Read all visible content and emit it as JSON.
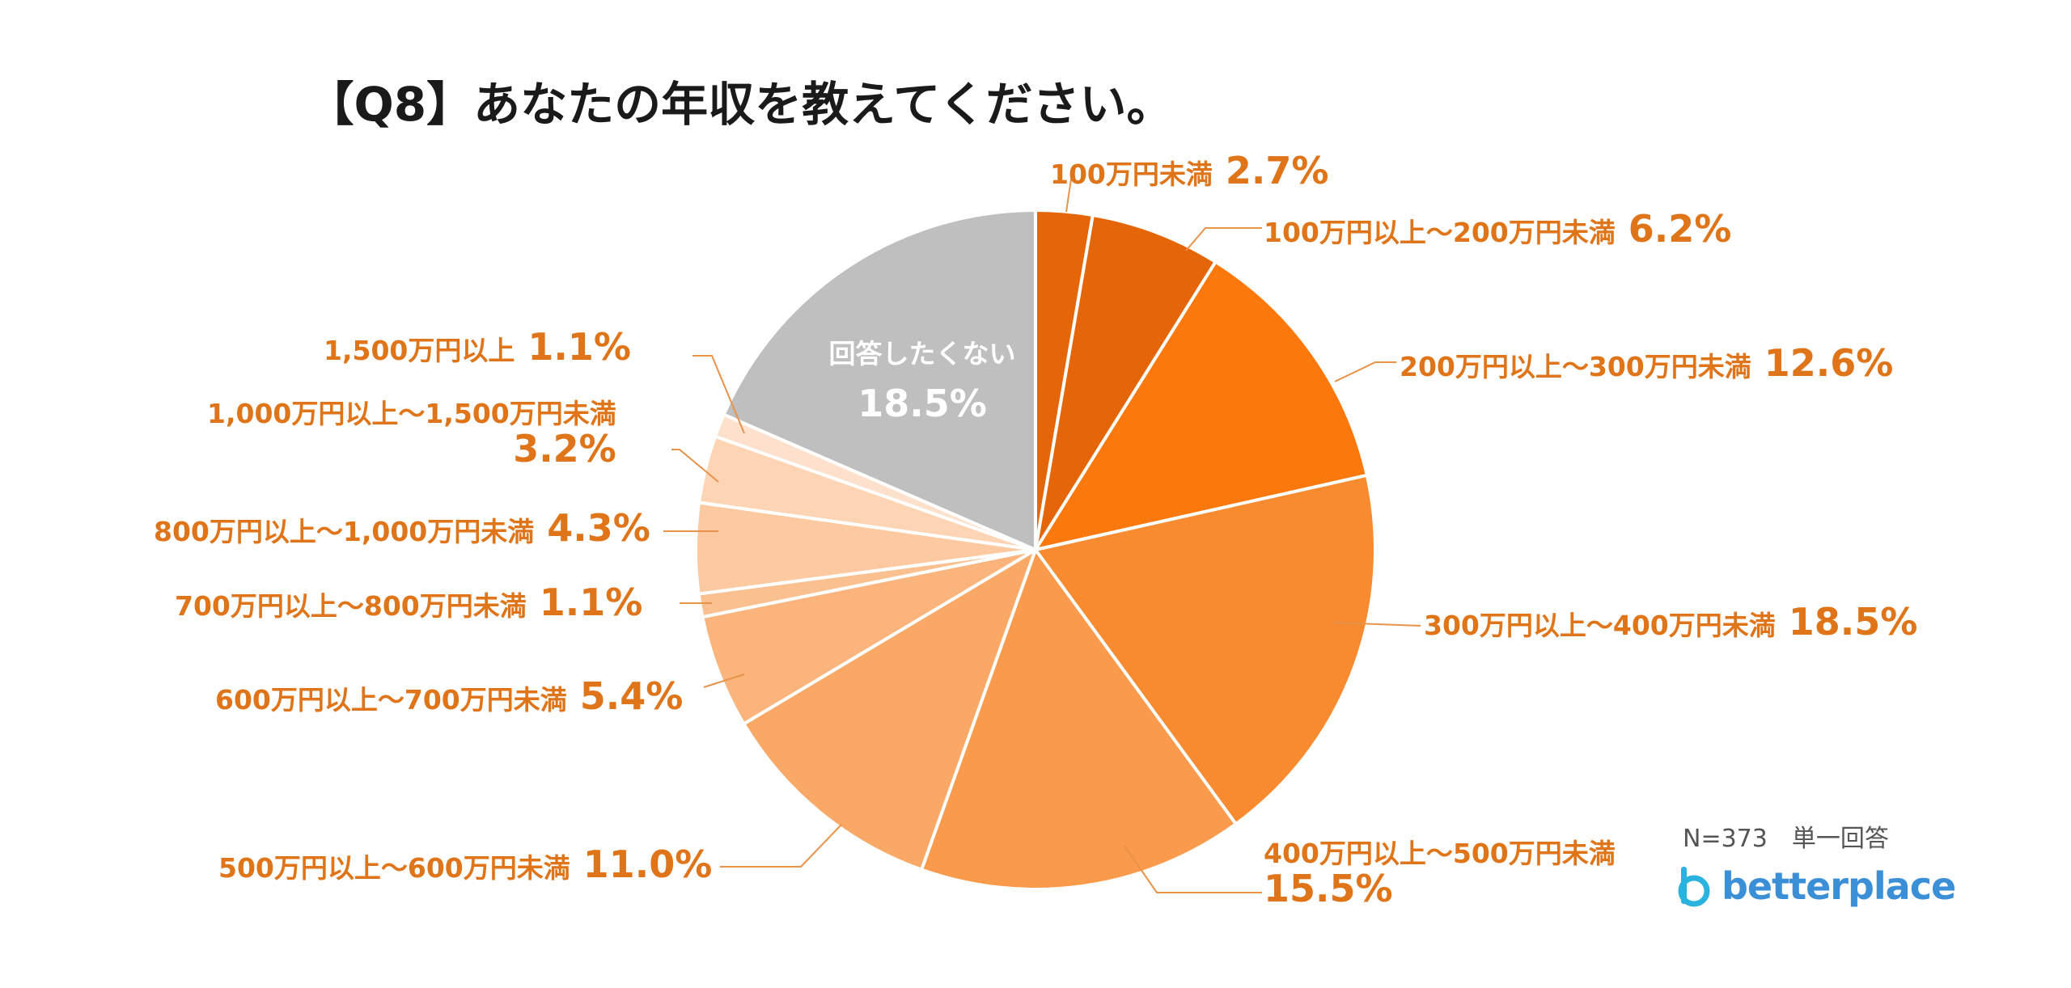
{
  "chart_data": {
    "type": "pie",
    "title": "【Q8】あなたの年収を教えてください。",
    "slices": [
      {
        "label": "100万円未満",
        "value": 2.7,
        "display": "2.7%",
        "color": "#e56608"
      },
      {
        "label": "100万円以上～200万円未満",
        "value": 6.2,
        "display": "6.2%",
        "color": "#e56608"
      },
      {
        "label": "200万円以上～300万円未満",
        "value": 12.6,
        "display": "12.6%",
        "color": "#fa780c"
      },
      {
        "label": "300万円以上～400万円未満",
        "value": 18.5,
        "display": "18.5%",
        "color": "#f88a2f"
      },
      {
        "label": "400万円以上～500万円未満",
        "value": 15.5,
        "display": "15.5%",
        "color": "#f99a4c"
      },
      {
        "label": "500万円以上～600万円未満",
        "value": 11.0,
        "display": "11.0%",
        "color": "#f9a866"
      },
      {
        "label": "600万円以上～700万円未満",
        "value": 5.4,
        "display": "5.4%",
        "color": "#fab47c"
      },
      {
        "label": "700万円以上～800万円未満",
        "value": 1.1,
        "display": "1.1%",
        "color": "#fbc08f"
      },
      {
        "label": "800万円以上～1,000万円未満",
        "value": 4.3,
        "display": "4.3%",
        "color": "#fcc9a0"
      },
      {
        "label": "1,000万円以上～1,500万円未満",
        "value": 3.2,
        "display": "3.2%",
        "color": "#fdd5b5"
      },
      {
        "label": "1,500万円以上",
        "value": 1.1,
        "display": "1.1%",
        "color": "#fde1cc"
      },
      {
        "label": "回答したくない",
        "value": 18.5,
        "display": "18.5%",
        "color": "#bfbfbf"
      }
    ]
  },
  "footer": {
    "note": "N=373　単一回答",
    "brand": "betterplace"
  }
}
